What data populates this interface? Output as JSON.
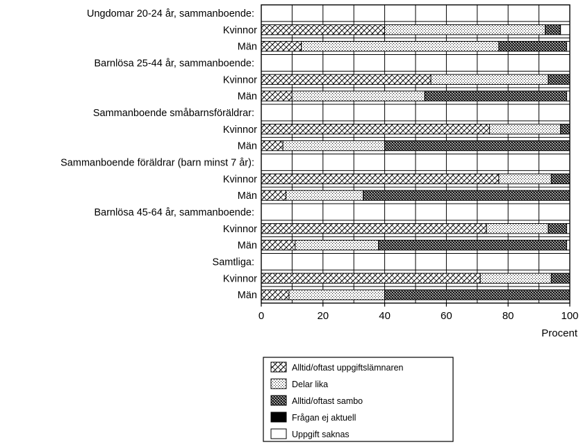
{
  "chart_data": {
    "type": "bar",
    "orientation": "horizontal",
    "stacked": true,
    "xlabel": "Procent",
    "xlim": [
      0,
      100
    ],
    "xticks": [
      0,
      20,
      40,
      60,
      80,
      100
    ],
    "grid": true,
    "legend_placement": "bottom",
    "groups": [
      {
        "label": "Ungdomar 20-24 år, sammanboende:",
        "rows": [
          {
            "label": "Kvinnor",
            "values": [
              40,
              52,
              5,
              0,
              3
            ]
          },
          {
            "label": "Män",
            "values": [
              13,
              64,
              22,
              0,
              1
            ]
          }
        ]
      },
      {
        "label": "Barnlösa 25-44 år, sammanboende:",
        "rows": [
          {
            "label": "Kvinnor",
            "values": [
              55,
              38,
              7,
              0,
              0
            ]
          },
          {
            "label": "Män",
            "values": [
              10,
              43,
              46,
              0,
              1
            ]
          }
        ]
      },
      {
        "label": "Sammanboende småbarnsföräldrar:",
        "rows": [
          {
            "label": "Kvinnor",
            "values": [
              74,
              23,
              3,
              0,
              0
            ]
          },
          {
            "label": "Män",
            "values": [
              7,
              33,
              60,
              0,
              0
            ]
          }
        ]
      },
      {
        "label": "Sammanboende föräldrar (barn minst 7 år):",
        "rows": [
          {
            "label": "Kvinnor",
            "values": [
              77,
              17,
              6,
              0,
              0
            ]
          },
          {
            "label": "Män",
            "values": [
              8,
              25,
              67,
              0,
              0
            ]
          }
        ]
      },
      {
        "label": "Barnlösa 45-64 år, sammanboende:",
        "rows": [
          {
            "label": "Kvinnor",
            "values": [
              73,
              20,
              6,
              0,
              1
            ]
          },
          {
            "label": "Män",
            "values": [
              11,
              27,
              61,
              0,
              1
            ]
          }
        ]
      },
      {
        "label": "Samtliga:",
        "rows": [
          {
            "label": "Kvinnor",
            "values": [
              71,
              23,
              6,
              0,
              0
            ]
          },
          {
            "label": "Män",
            "values": [
              9,
              31,
              60,
              0,
              0
            ]
          }
        ]
      }
    ],
    "series": [
      {
        "name": "Alltid/oftast uppgiftslämnaren",
        "pattern": "crosshatch"
      },
      {
        "name": "Delar lika",
        "pattern": "dots"
      },
      {
        "name": "Alltid/oftast sambo",
        "pattern": "dense"
      },
      {
        "name": "Frågan ej aktuell",
        "pattern": "solid",
        "color": "#000000"
      },
      {
        "name": "Uppgift saknas",
        "pattern": "empty",
        "color": "#ffffff"
      }
    ]
  }
}
